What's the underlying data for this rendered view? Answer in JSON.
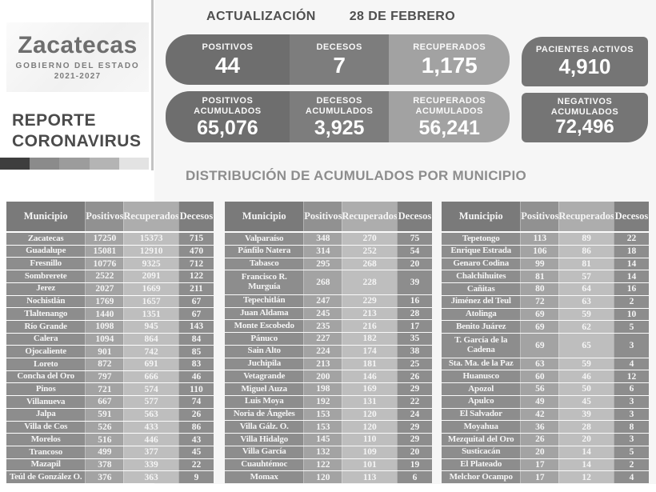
{
  "brand": {
    "state": "Zacatecas",
    "government": "GOBIERNO DEL ESTADO",
    "period": "2021-2027",
    "report_line1": "REPORTE",
    "report_line2": "CORONAVIRUS",
    "bar_colors": [
      "#3e3e3e",
      "#8b8b8b",
      "#9c9c9c",
      "#b4b4b4",
      "#e3e3e3"
    ]
  },
  "update": {
    "title": "ACTUALIZACIÓN",
    "date": "28 DE FEBRERO"
  },
  "stats": {
    "daily": [
      {
        "label": "POSITIVOS",
        "value": "44"
      },
      {
        "label": "DECESOS",
        "value": "7"
      },
      {
        "label": "RECUPERADOS",
        "value": "1,175"
      }
    ],
    "daily_side": {
      "label": "PACIENTES ACTIVOS",
      "value": "4,910"
    },
    "accumulated": [
      {
        "label1": "POSITIVOS",
        "label2": "ACUMULADOS",
        "value": "65,076"
      },
      {
        "label1": "DECESOS",
        "label2": "ACUMULADOS",
        "value": "3,925"
      },
      {
        "label1": "RECUPERADOS",
        "label2": "ACUMULADOS",
        "value": "56,241"
      }
    ],
    "accumulated_side": {
      "label1": "NEGATIVOS",
      "label2": "ACUMULADOS",
      "value": "72,496"
    }
  },
  "section_title": "DISTRIBUCIÓN DE ACUMULADOS POR MUNICIPIO",
  "table_columns": [
    "Municipio",
    "Positivos",
    "Recuperados",
    "Decesos"
  ],
  "tables": [
    {
      "tall_row": -1,
      "rows": [
        [
          "Zacatecas",
          "17250",
          "15373",
          "715"
        ],
        [
          "Guadalupe",
          "15081",
          "12910",
          "470"
        ],
        [
          "Fresnillo",
          "10776",
          "9325",
          "712"
        ],
        [
          "Sombrerete",
          "2522",
          "2091",
          "122"
        ],
        [
          "Jerez",
          "2027",
          "1669",
          "211"
        ],
        [
          "Nochistlán",
          "1769",
          "1657",
          "67"
        ],
        [
          "Tlaltenango",
          "1440",
          "1351",
          "67"
        ],
        [
          "Río Grande",
          "1098",
          "945",
          "143"
        ],
        [
          "Calera",
          "1094",
          "864",
          "84"
        ],
        [
          "Ojocaliente",
          "901",
          "742",
          "85"
        ],
        [
          "Loreto",
          "872",
          "691",
          "83"
        ],
        [
          "Concha del Oro",
          "797",
          "666",
          "46"
        ],
        [
          "Pinos",
          "721",
          "574",
          "110"
        ],
        [
          "Villanueva",
          "667",
          "577",
          "74"
        ],
        [
          "Jalpa",
          "591",
          "563",
          "26"
        ],
        [
          "Villa de Cos",
          "526",
          "433",
          "86"
        ],
        [
          "Morelos",
          "516",
          "446",
          "43"
        ],
        [
          "Trancoso",
          "499",
          "377",
          "45"
        ],
        [
          "Mazapil",
          "378",
          "339",
          "22"
        ],
        [
          "Teúl de González O.",
          "376",
          "363",
          "9"
        ]
      ]
    },
    {
      "tall_row": 3,
      "rows": [
        [
          "Valparaíso",
          "348",
          "270",
          "75"
        ],
        [
          "Pánfilo Natera",
          "314",
          "252",
          "54"
        ],
        [
          "Tabasco",
          "295",
          "268",
          "20"
        ],
        [
          "Francisco R. Murguía",
          "268",
          "228",
          "39"
        ],
        [
          "Tepechitlán",
          "247",
          "229",
          "16"
        ],
        [
          "Juan Aldama",
          "245",
          "213",
          "28"
        ],
        [
          "Monte Escobedo",
          "235",
          "216",
          "17"
        ],
        [
          "Pánuco",
          "227",
          "182",
          "35"
        ],
        [
          "Sain Alto",
          "224",
          "174",
          "38"
        ],
        [
          "Juchipila",
          "213",
          "181",
          "25"
        ],
        [
          "Vetagrande",
          "200",
          "146",
          "26"
        ],
        [
          "Miguel Auza",
          "198",
          "169",
          "29"
        ],
        [
          "Luis Moya",
          "192",
          "131",
          "22"
        ],
        [
          "Noria de Ángeles",
          "153",
          "120",
          "24"
        ],
        [
          "Villa Gálz. O.",
          "153",
          "120",
          "29"
        ],
        [
          "Villa Hidalgo",
          "145",
          "110",
          "29"
        ],
        [
          "Villa García",
          "132",
          "109",
          "20"
        ],
        [
          "Cuauhtémoc",
          "122",
          "101",
          "19"
        ],
        [
          "Momax",
          "120",
          "113",
          "6"
        ]
      ]
    },
    {
      "tall_row": 8,
      "rows": [
        [
          "Tepetongo",
          "113",
          "89",
          "22"
        ],
        [
          "Enrique Estrada",
          "106",
          "86",
          "18"
        ],
        [
          "Genaro Codina",
          "99",
          "81",
          "14"
        ],
        [
          "Chalchihuites",
          "81",
          "57",
          "14"
        ],
        [
          "Cañitas",
          "80",
          "64",
          "16"
        ],
        [
          "Jiménez del Teul",
          "72",
          "63",
          "2"
        ],
        [
          "Atolinga",
          "69",
          "59",
          "10"
        ],
        [
          "Benito Juárez",
          "69",
          "62",
          "5"
        ],
        [
          "T. García de la Cadena",
          "69",
          "65",
          "3"
        ],
        [
          "Sta. Ma. de la Paz",
          "63",
          "59",
          "4"
        ],
        [
          "Huanusco",
          "60",
          "46",
          "12"
        ],
        [
          "Apozol",
          "56",
          "50",
          "6"
        ],
        [
          "Apulco",
          "49",
          "45",
          "3"
        ],
        [
          "El Salvador",
          "42",
          "39",
          "3"
        ],
        [
          "Moyahua",
          "36",
          "28",
          "8"
        ],
        [
          "Mezquital del Oro",
          "26",
          "20",
          "3"
        ],
        [
          "Susticacán",
          "20",
          "14",
          "5"
        ],
        [
          "El Plateado",
          "17",
          "14",
          "2"
        ],
        [
          "Melchor Ocampo",
          "17",
          "12",
          "4"
        ]
      ]
    }
  ],
  "colors": {
    "pill_positivos": "#6e6e6e",
    "pill_decesos": "#7d7d7d",
    "pill_recuperados": "#a2a2a2",
    "side_box": "#757575",
    "table_header": "#7a7a7a",
    "table_municipio": "#8d8d8d",
    "table_positivos": "#a3a3a3",
    "table_recuperados": "#bebebe",
    "section_title": "#8d8d8d"
  }
}
